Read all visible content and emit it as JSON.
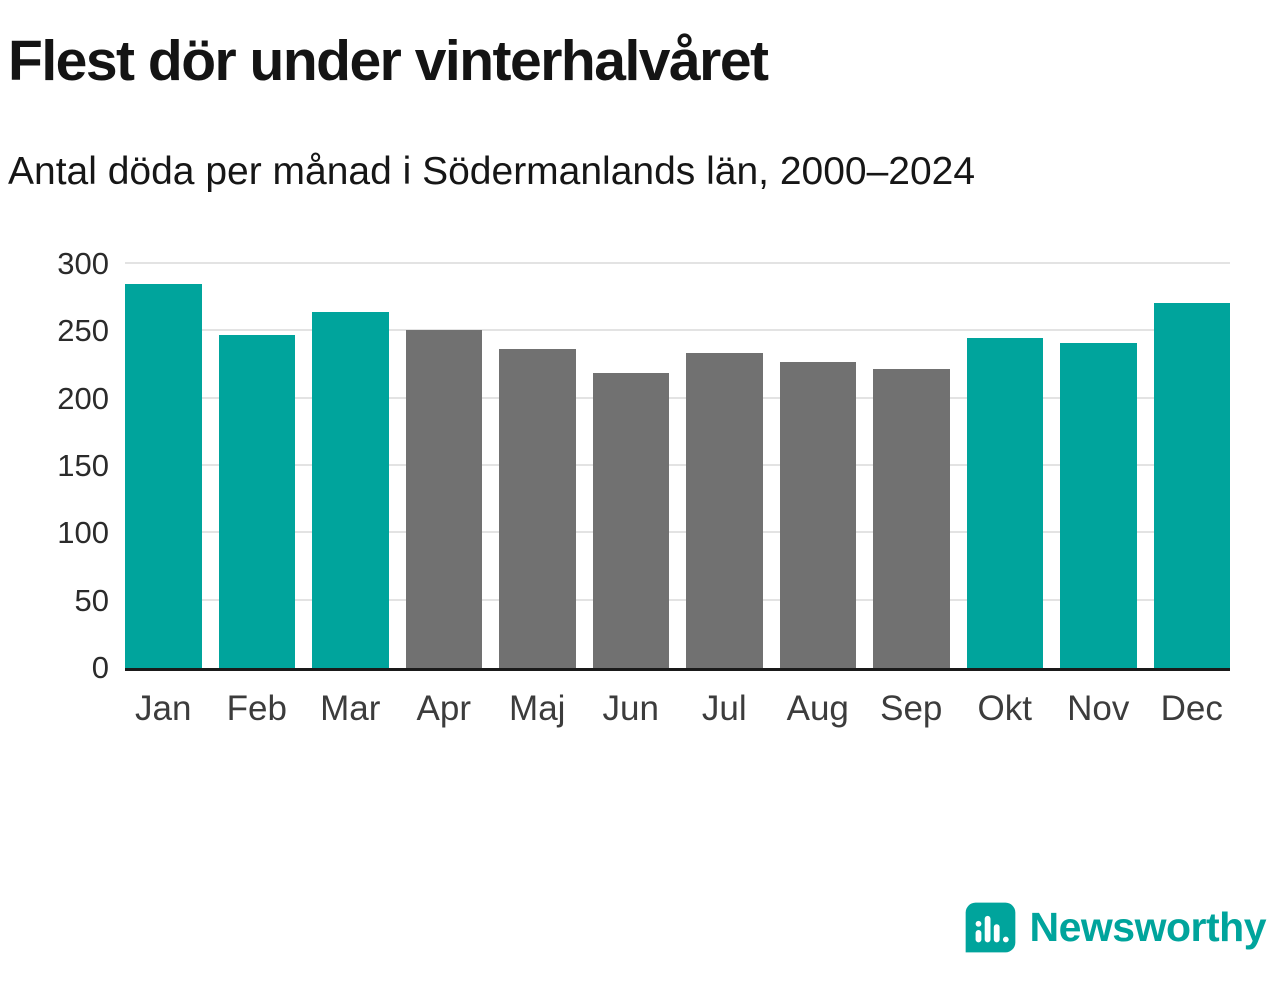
{
  "chart_data": {
    "type": "bar",
    "title": "Flest dör under vinterhalvåret",
    "subtitle": "Antal döda per månad i Södermanlands län, 2000–2024",
    "categories": [
      "Jan",
      "Feb",
      "Mar",
      "Apr",
      "Maj",
      "Jun",
      "Jul",
      "Aug",
      "Sep",
      "Okt",
      "Nov",
      "Dec"
    ],
    "values": [
      285,
      247,
      264,
      251,
      237,
      219,
      234,
      227,
      222,
      245,
      241,
      271
    ],
    "bar_colors": [
      "winter",
      "winter",
      "winter",
      "summer",
      "summer",
      "summer",
      "summer",
      "summer",
      "summer",
      "winter",
      "winter",
      "winter"
    ],
    "colors": {
      "winter": "#00a49c",
      "summer": "#717171"
    },
    "xlabel": "",
    "ylabel": "",
    "ylim": [
      0,
      300
    ],
    "yticks": [
      0,
      50,
      100,
      150,
      200,
      250,
      300
    ],
    "grid": "horizontal",
    "legend": "none"
  },
  "footer": {
    "brand": "Newsworthy",
    "brand_color": "#00a49c",
    "logo_icon": "bar-chart-speech-bubble-icon"
  }
}
